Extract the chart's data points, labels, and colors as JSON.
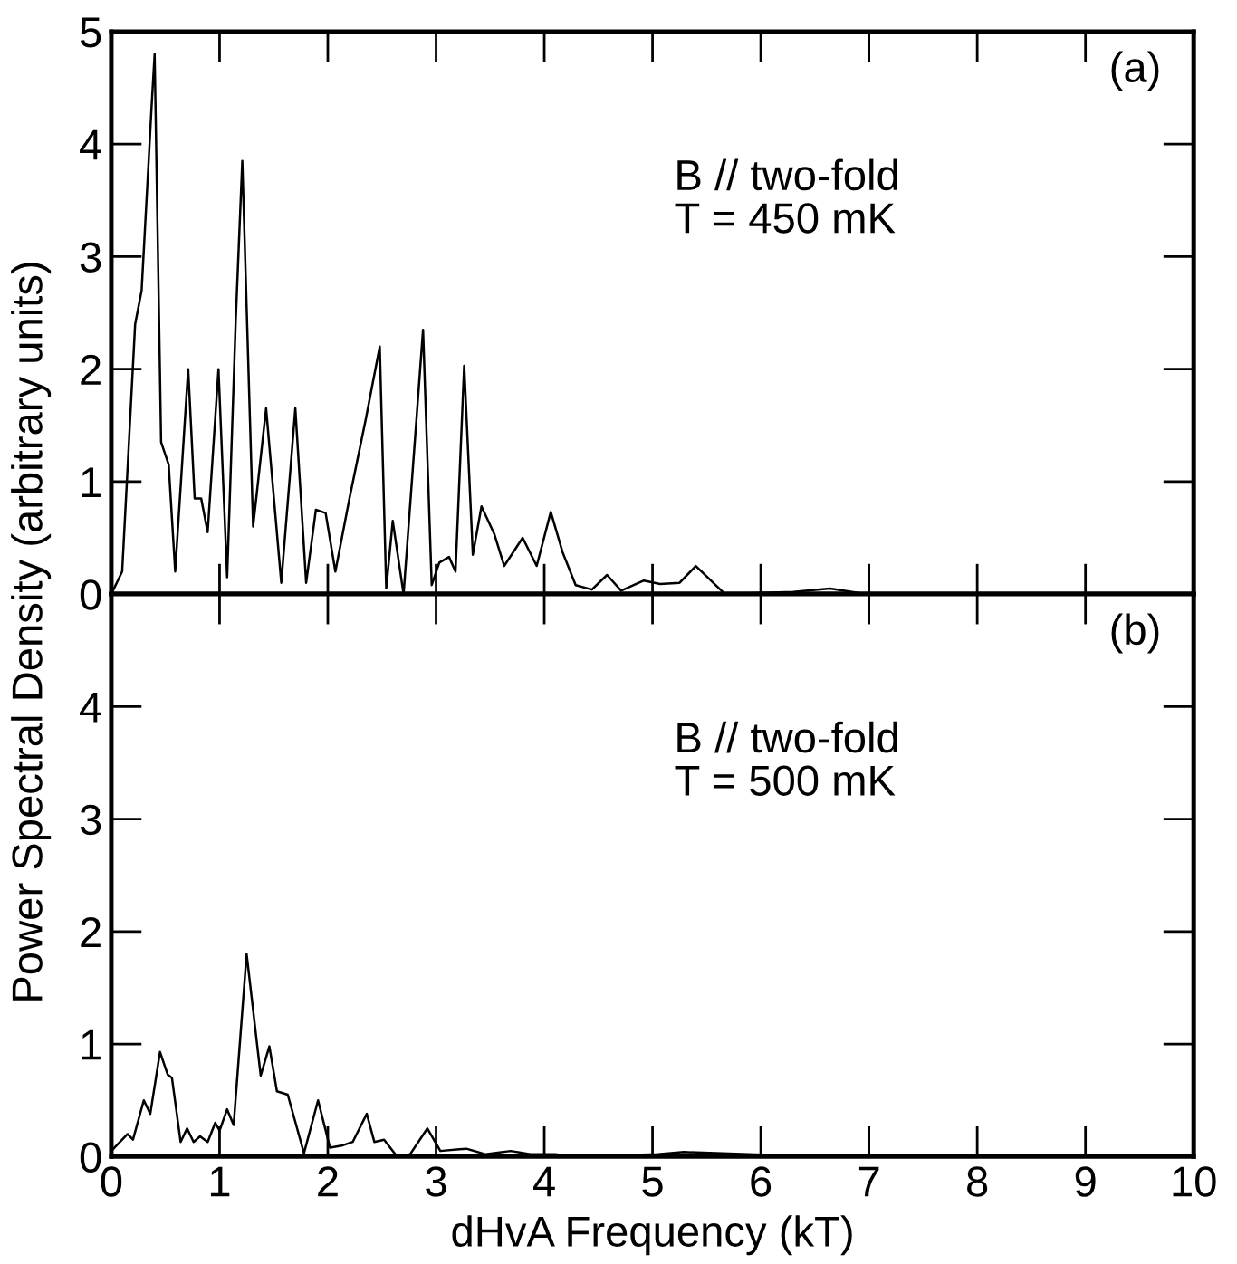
{
  "chart_data": [
    {
      "type": "line",
      "ylabel": "Power Spectral Density (arbitrary units)",
      "annotations": [
        "(a)",
        "B // two-fold\nT = 450 mK"
      ],
      "xlim": [
        0,
        10
      ],
      "ylim": [
        0,
        5
      ],
      "xticks": [
        0,
        1,
        2,
        3,
        4,
        5,
        6,
        7,
        8,
        9,
        10
      ],
      "yticks": [
        0,
        1,
        2,
        3,
        4,
        5
      ],
      "tick_labels": "y",
      "grid": false,
      "legend": false,
      "marker": "none",
      "line_style": "solid",
      "series": [
        {
          "color": "#000000",
          "x": [
            0,
            0.1,
            0.22,
            0.28,
            0.37,
            0.4,
            0.46,
            0.53,
            0.59,
            0.71,
            0.77,
            0.83,
            0.89,
            0.99,
            1.07,
            1.15,
            1.21,
            1.31,
            1.43,
            1.57,
            1.7,
            1.8,
            1.89,
            1.98,
            2.07,
            2.2,
            2.35,
            2.48,
            2.54,
            2.6,
            2.7,
            2.88,
            2.96,
            3.03,
            3.12,
            3.18,
            3.26,
            3.34,
            3.42,
            3.54,
            3.63,
            3.8,
            3.93,
            4.06,
            4.17,
            4.29,
            4.44,
            4.58,
            4.71,
            4.92,
            5.07,
            5.25,
            5.4,
            5.67,
            6.3,
            6.64,
            6.9
          ],
          "values": [
            0,
            0.2,
            2.4,
            2.7,
            4.3,
            4.8,
            1.35,
            1.15,
            0.2,
            2.0,
            0.85,
            0.85,
            0.55,
            2.0,
            0.15,
            2.45,
            3.85,
            0.6,
            1.65,
            0.1,
            1.65,
            0.1,
            0.75,
            0.72,
            0.2,
            0.85,
            1.55,
            2.2,
            0.05,
            0.65,
            0,
            2.35,
            0.08,
            0.28,
            0.33,
            0.2,
            2.03,
            0.35,
            0.78,
            0.53,
            0.25,
            0.5,
            0.25,
            0.73,
            0.37,
            0.08,
            0.04,
            0.17,
            0.03,
            0.12,
            0.09,
            0.1,
            0.25,
            0,
            0.02,
            0.05,
            0.01
          ]
        }
      ]
    },
    {
      "type": "line",
      "xlabel": "dHvA Frequency (kT)",
      "annotations": [
        "(b)",
        "B // two-fold\nT = 500 mK"
      ],
      "xlim": [
        0,
        10
      ],
      "ylim": [
        0,
        5
      ],
      "xticks": [
        0,
        1,
        2,
        3,
        4,
        5,
        6,
        7,
        8,
        9,
        10
      ],
      "yticks": [
        0,
        1,
        2,
        3,
        4
      ],
      "grid": false,
      "legend": false,
      "marker": "none",
      "line_style": "solid",
      "series": [
        {
          "color": "#000000",
          "x": [
            0,
            0.15,
            0.2,
            0.3,
            0.36,
            0.45,
            0.52,
            0.56,
            0.64,
            0.7,
            0.76,
            0.82,
            0.89,
            0.96,
            1.0,
            1.07,
            1.13,
            1.25,
            1.38,
            1.46,
            1.53,
            1.63,
            1.78,
            1.91,
            2.02,
            2.14,
            2.23,
            2.36,
            2.43,
            2.52,
            2.64,
            2.76,
            2.92,
            3.04,
            3.28,
            3.46,
            3.69,
            3.87,
            4.1,
            4.28,
            5.05,
            5.29,
            6.24
          ],
          "values": [
            0.05,
            0.2,
            0.15,
            0.5,
            0.38,
            0.93,
            0.73,
            0.7,
            0.13,
            0.25,
            0.13,
            0.18,
            0.13,
            0.3,
            0.23,
            0.42,
            0.28,
            1.8,
            0.72,
            0.98,
            0.58,
            0.55,
            0.03,
            0.5,
            0.08,
            0.1,
            0.13,
            0.38,
            0.13,
            0.15,
            0,
            0.02,
            0.25,
            0.05,
            0.07,
            0.02,
            0.05,
            0.02,
            0.02,
            0,
            0.02,
            0.04,
            0.01
          ]
        }
      ]
    }
  ]
}
